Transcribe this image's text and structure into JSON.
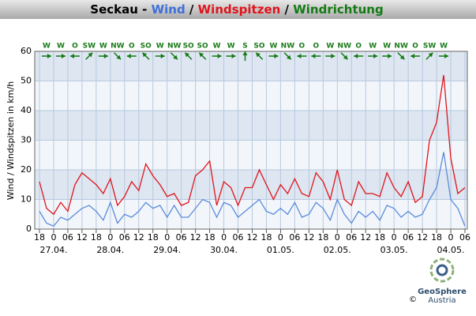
{
  "chart_data": {
    "type": "line",
    "title_parts": [
      {
        "text": "Seckau - ",
        "color": "#000000"
      },
      {
        "text": "Wind",
        "color": "#3f6fd8"
      },
      {
        "text": " / ",
        "color": "#000000"
      },
      {
        "text": "Windspitzen",
        "color": "#e0141b"
      },
      {
        "text": " / ",
        "color": "#000000"
      },
      {
        "text": "Windrichtung",
        "color": "#137a13"
      }
    ],
    "y_label": "Wind / Windspitzen in km/h",
    "x": [
      0,
      3,
      6,
      9,
      12,
      15,
      18,
      21,
      24,
      27,
      30,
      33,
      36,
      39,
      42,
      45,
      48,
      51,
      54,
      57,
      60,
      63,
      66,
      69,
      72,
      75,
      78,
      81,
      84,
      87,
      90,
      93,
      96,
      99,
      102,
      105,
      108,
      111,
      114,
      117,
      120,
      123,
      126,
      129,
      132,
      135,
      138,
      141,
      144,
      147,
      150,
      153,
      156,
      159,
      162,
      165,
      168,
      171,
      174,
      177,
      180
    ],
    "series": [
      {
        "name": "Windspitzen",
        "color": "#e0141b",
        "values": [
          16,
          7,
          5,
          9,
          6,
          15,
          19,
          17,
          15,
          12,
          17,
          8,
          11,
          16,
          13,
          22,
          18,
          15,
          11,
          12,
          8,
          9,
          18,
          20,
          23,
          8,
          16,
          14,
          8,
          14,
          14,
          20,
          15,
          10,
          15,
          12,
          17,
          12,
          11,
          19,
          16,
          10,
          20,
          10,
          8,
          16,
          12,
          12,
          11,
          19,
          14,
          11,
          16,
          9,
          11,
          30,
          36,
          52,
          24,
          12,
          14
        ]
      },
      {
        "name": "Wind",
        "color": "#5b8bd9",
        "values": [
          6,
          2,
          1,
          4,
          3,
          5,
          7,
          8,
          6,
          3,
          9,
          2,
          5,
          4,
          6,
          9,
          7,
          8,
          4,
          8,
          4,
          4,
          7,
          10,
          9,
          4,
          9,
          8,
          4,
          6,
          8,
          10,
          6,
          5,
          7,
          5,
          9,
          4,
          5,
          9,
          7,
          3,
          10,
          5,
          2,
          6,
          4,
          6,
          3,
          8,
          7,
          4,
          6,
          4,
          5,
          10,
          14,
          26,
          10,
          7,
          1
        ]
      }
    ],
    "directions": {
      "color": "#137a13",
      "x": [
        3,
        9,
        15,
        21,
        27,
        33,
        39,
        45,
        51,
        57,
        63,
        69,
        75,
        81,
        87,
        93,
        99,
        105,
        111,
        117,
        123,
        129,
        135,
        141,
        147,
        153,
        159,
        165,
        171
      ],
      "labels": [
        "W",
        "W",
        "O",
        "SW",
        "W",
        "NW",
        "O",
        "SO",
        "W",
        "NW",
        "SO",
        "SO",
        "W",
        "W",
        "S",
        "SO",
        "W",
        "NW",
        "O",
        "O",
        "W",
        "NW",
        "O",
        "W",
        "W",
        "NW",
        "O",
        "SW",
        "W"
      ]
    },
    "xlim": [
      -2,
      181
    ],
    "xticks": [
      {
        "value": 0,
        "label": "18"
      },
      {
        "value": 6,
        "label": "0"
      },
      {
        "value": 12,
        "label": "06"
      },
      {
        "value": 18,
        "label": "12"
      },
      {
        "value": 24,
        "label": "18"
      },
      {
        "value": 30,
        "label": "0"
      },
      {
        "value": 36,
        "label": "06"
      },
      {
        "value": 42,
        "label": "12"
      },
      {
        "value": 48,
        "label": "18"
      },
      {
        "value": 54,
        "label": "0"
      },
      {
        "value": 60,
        "label": "06"
      },
      {
        "value": 66,
        "label": "12"
      },
      {
        "value": 72,
        "label": "18"
      },
      {
        "value": 78,
        "label": "0"
      },
      {
        "value": 84,
        "label": "06"
      },
      {
        "value": 90,
        "label": "12"
      },
      {
        "value": 96,
        "label": "18"
      },
      {
        "value": 102,
        "label": "0"
      },
      {
        "value": 108,
        "label": "06"
      },
      {
        "value": 114,
        "label": "12"
      },
      {
        "value": 120,
        "label": "18"
      },
      {
        "value": 126,
        "label": "0"
      },
      {
        "value": 132,
        "label": "06"
      },
      {
        "value": 138,
        "label": "12"
      },
      {
        "value": 144,
        "label": "18"
      },
      {
        "value": 150,
        "label": "0"
      },
      {
        "value": 156,
        "label": "06"
      },
      {
        "value": 162,
        "label": "12"
      },
      {
        "value": 168,
        "label": "18"
      },
      {
        "value": 174,
        "label": "0"
      },
      {
        "value": 180,
        "label": "06"
      }
    ],
    "date_labels": [
      {
        "value": 6,
        "label": "27.04."
      },
      {
        "value": 30,
        "label": "28.04."
      },
      {
        "value": 54,
        "label": "29.04."
      },
      {
        "value": 78,
        "label": "30.04."
      },
      {
        "value": 102,
        "label": "01.05."
      },
      {
        "value": 126,
        "label": "02.05."
      },
      {
        "value": 150,
        "label": "03.05."
      },
      {
        "value": 174,
        "label": "04.05."
      }
    ],
    "ylim": [
      0,
      60
    ],
    "yticks": [
      0,
      10,
      20,
      30,
      40,
      50,
      60
    ],
    "grid": true,
    "band_colors": [
      "#f2f6fb",
      "#dde6f1"
    ]
  },
  "logo": {
    "name": "GeoSphere",
    "country": "Austria",
    "copyright": "©"
  }
}
